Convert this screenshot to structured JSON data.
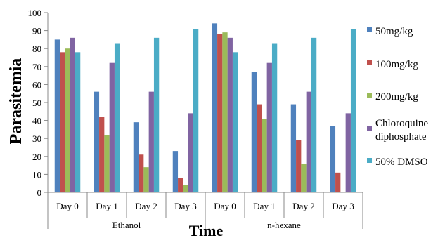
{
  "chart_data": {
    "type": "bar",
    "xlabel": "Time",
    "ylabel": "Parasitemia",
    "ylim": [
      0,
      100
    ],
    "yticks": [
      0,
      10,
      20,
      30,
      40,
      50,
      60,
      70,
      80,
      90,
      100
    ],
    "grid": false,
    "legend_position": "right",
    "groups": [
      {
        "label": "Ethanol",
        "categories": [
          "Day 0",
          "Day 1",
          "Day 2",
          "Day 3"
        ]
      },
      {
        "label": "n-hexane",
        "categories": [
          "Day 0",
          "Day 1",
          "Day 2",
          "Day 3"
        ]
      }
    ],
    "series": [
      {
        "name": "50mg/kg",
        "color": "#4F81BD",
        "values": [
          85,
          56,
          39,
          23,
          94,
          67,
          49,
          37
        ]
      },
      {
        "name": "100mg/kg",
        "color": "#C0504D",
        "values": [
          78,
          42,
          21,
          8,
          88,
          49,
          29,
          11
        ]
      },
      {
        "name": "200mg/kg",
        "color": "#9BBB59",
        "values": [
          80,
          32,
          14,
          4,
          89,
          41,
          16,
          0
        ]
      },
      {
        "name": "Chloroquine diphosphate",
        "color": "#8064A2",
        "values": [
          86,
          72,
          56,
          44,
          86,
          72,
          56,
          44
        ]
      },
      {
        "name": "50% DMSO",
        "color": "#4BACC6",
        "values": [
          78,
          83,
          86,
          91,
          78,
          83,
          86,
          91
        ]
      }
    ]
  }
}
